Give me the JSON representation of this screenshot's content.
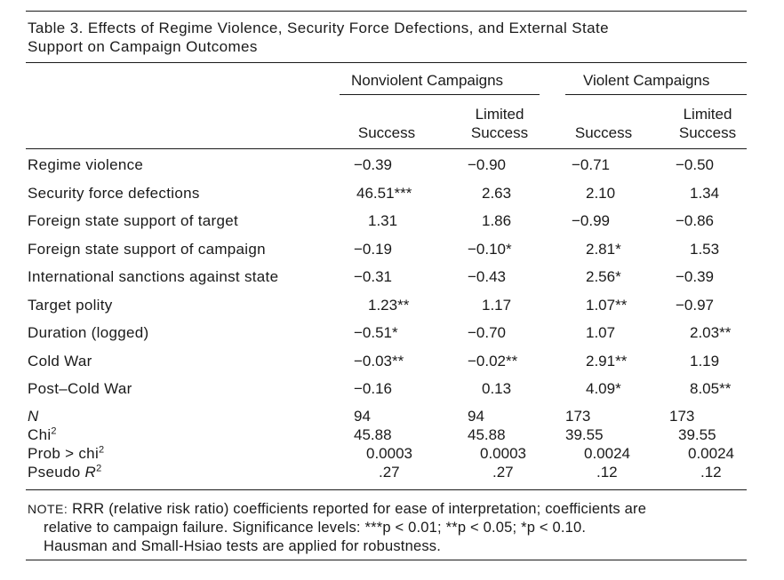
{
  "table": {
    "title_line1": "Table 3. Effects of Regime Violence, Security Force Defections, and External State",
    "title_line2": "Support on Campaign Outcomes",
    "groups": [
      "Nonviolent Campaigns",
      "Violent Campaigns"
    ],
    "columns": [
      {
        "line1": "",
        "line2": "Success"
      },
      {
        "line1": "Limited",
        "line2": "Success"
      },
      {
        "line1": "",
        "line2": "Success"
      },
      {
        "line1": "Limited",
        "line2": "Success"
      }
    ],
    "rows": [
      {
        "label": "Regime violence",
        "cells": [
          "−0.39",
          "−0.90",
          "−0.71",
          "−0.50"
        ]
      },
      {
        "label": "Security force defections",
        "cells": [
          "46.51***",
          "2.63",
          "2.10",
          "1.34"
        ]
      },
      {
        "label": "Foreign state support of target",
        "cells": [
          "1.31",
          "1.86",
          "−0.99",
          "−0.86"
        ]
      },
      {
        "label": "Foreign state support of campaign",
        "cells": [
          "−0.19",
          "−0.10*",
          "2.81*",
          "1.53"
        ]
      },
      {
        "label": "International sanctions against state",
        "cells": [
          "−0.31",
          "−0.43",
          "2.56*",
          "−0.39"
        ]
      },
      {
        "label": "Target polity",
        "cells": [
          "1.23**",
          "1.17",
          "1.07**",
          "−0.97"
        ]
      },
      {
        "label": "Duration (logged)",
        "cells": [
          "−0.51*",
          "−0.70",
          "1.07",
          "2.03**"
        ]
      },
      {
        "label": "Cold War",
        "cells": [
          "−0.03**",
          "−0.02**",
          "2.91**",
          "1.19"
        ]
      },
      {
        "label": "Post–Cold War",
        "cells": [
          "−0.16",
          "0.13",
          "4.09*",
          "8.05**"
        ]
      }
    ],
    "stats": [
      {
        "label": "N",
        "cells": [
          "94",
          "94",
          "173",
          "173"
        ]
      },
      {
        "label": "Chi",
        "sup": "2",
        "cells": [
          "45.88",
          "45.88",
          "39.55",
          "39.55"
        ]
      },
      {
        "label": "Prob > chi",
        "sup": "2",
        "cells": [
          "0.0003",
          "0.0003",
          "0.0024",
          "0.0024"
        ]
      },
      {
        "label": "Pseudo R",
        "sup": "2",
        "cells": [
          ".27",
          ".27",
          ".12",
          ".12"
        ]
      }
    ],
    "note_prefix": "NOTE:",
    "note_text": "RRR (relative risk ratio) coefficients reported for ease of interpretation; coefficients are",
    "note_line2": "relative to campaign failure. Significance levels: ***p < 0.01; **p < 0.05; *p < 0.10.",
    "note_line3": "Hausman and Small-Hsiao tests are applied for robustness."
  }
}
